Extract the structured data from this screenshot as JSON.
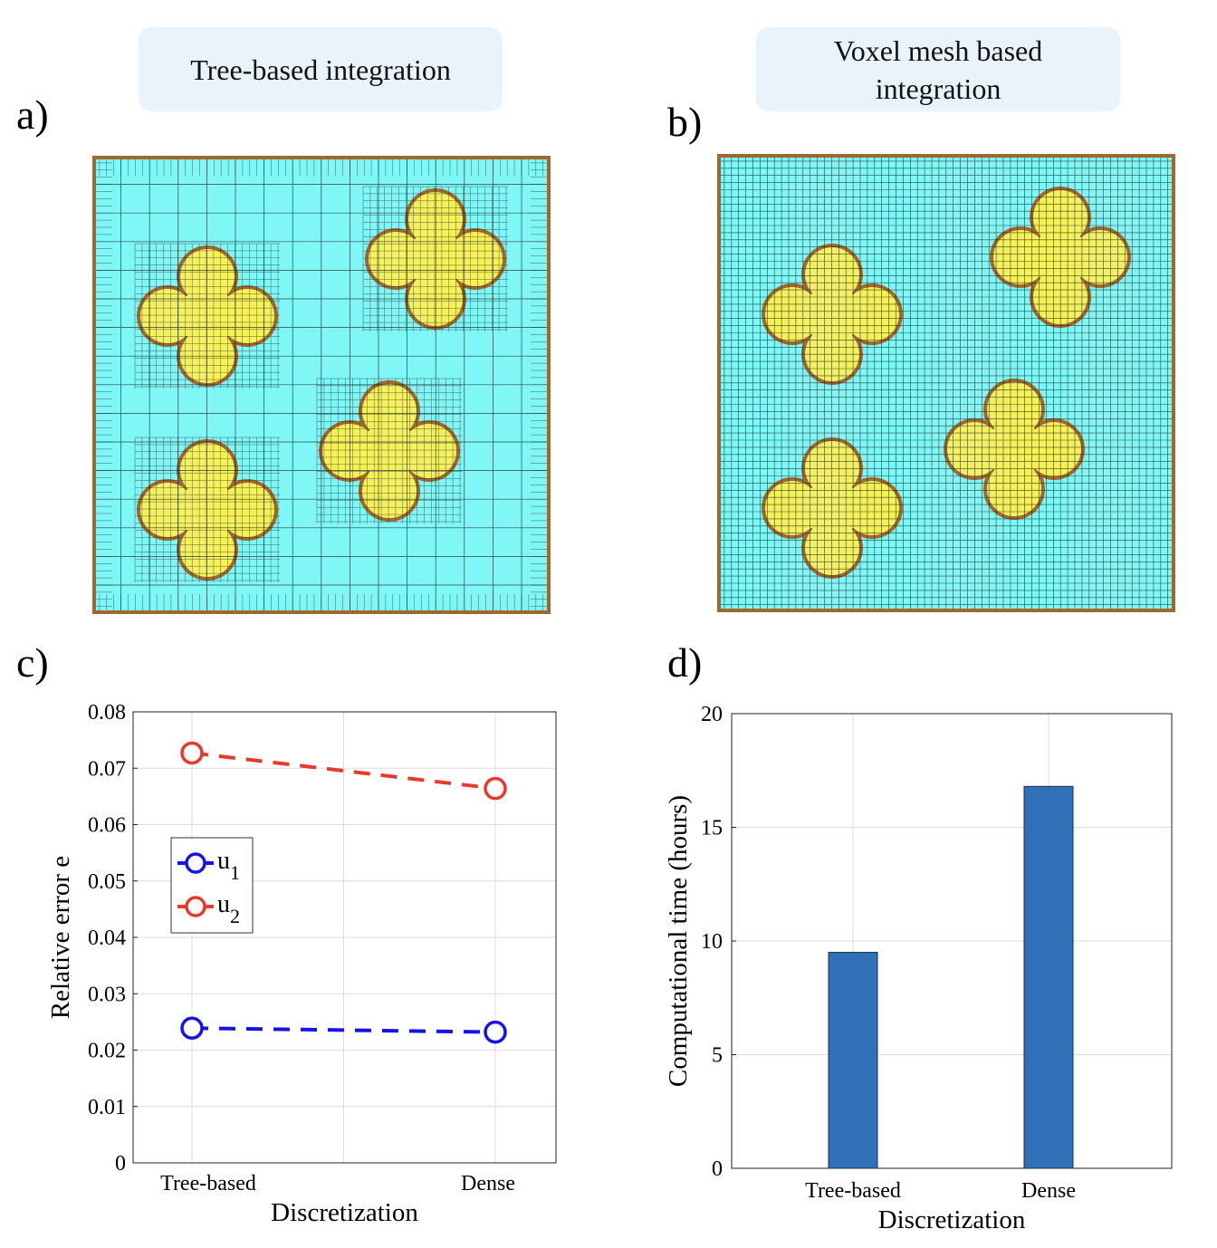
{
  "panels": {
    "a": {
      "letter": "a)",
      "title": "Tree-based integration"
    },
    "b": {
      "letter": "b)",
      "title": "Voxel mesh based integration"
    },
    "c": {
      "letter": "c)"
    },
    "d": {
      "letter": "d)"
    }
  },
  "colors": {
    "title_bg": "#e9f3fb",
    "matrix": "#7ff7f7",
    "inclusion": "#f6f15a",
    "inclusion_edge": "#a0682c",
    "mesh_line": "#1c2a2a",
    "u1": "#1414e6",
    "u2": "#e8392b",
    "bar": "#3070b8"
  },
  "chart_data": [
    {
      "type": "line",
      "categories": [
        "Tree-based",
        "Dense"
      ],
      "series": [
        {
          "name": "u₁",
          "values": [
            0.0239,
            0.0232
          ]
        },
        {
          "name": "u₂",
          "values": [
            0.0727,
            0.0664
          ]
        }
      ],
      "title": "",
      "xlabel": "Discretization",
      "ylabel": "Relative error e",
      "ylim": [
        0,
        0.08
      ],
      "yticks": [
        "0",
        "0.01",
        "0.02",
        "0.03",
        "0.04",
        "0.05",
        "0.06",
        "0.07",
        "0.08"
      ],
      "grid": true,
      "legend": {
        "placement": "left-middle",
        "labels": [
          "u",
          "u"
        ],
        "subscripts": [
          "1",
          "2"
        ]
      },
      "line_style": "dashed with open circle markers"
    },
    {
      "type": "bar",
      "categories": [
        "Tree-based",
        "Dense"
      ],
      "values": [
        9.5,
        16.8
      ],
      "title": "",
      "xlabel": "Discretization",
      "ylabel": "Computational time (hours)",
      "ylim": [
        0,
        20
      ],
      "yticks": [
        "0",
        "5",
        "10",
        "15",
        "20"
      ],
      "grid": true
    }
  ]
}
